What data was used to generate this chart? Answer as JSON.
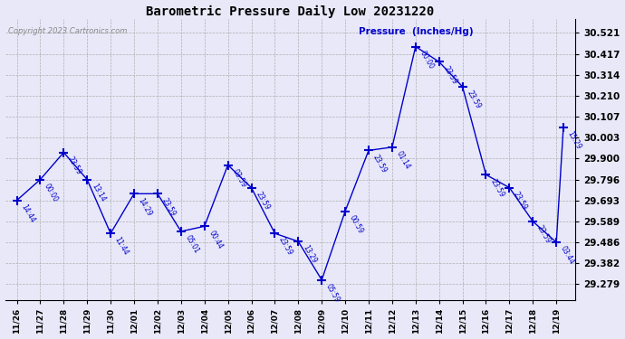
{
  "title": "Barometric Pressure Daily Low 20231220",
  "ylabel": "Pressure  (Inches/Hg)",
  "copyright": "Copyright 2023 Cartronics.com",
  "background_color": "#e8e8f8",
  "line_color": "#0000cc",
  "text_color": "#0000cc",
  "title_color": "#000000",
  "copyright_color": "#888888",
  "ytick_values": [
    29.279,
    29.382,
    29.486,
    29.589,
    29.693,
    29.796,
    29.9,
    30.003,
    30.107,
    30.21,
    30.314,
    30.417,
    30.521
  ],
  "ylim": [
    29.2,
    30.59
  ],
  "data_points": [
    {
      "x": 0,
      "value": 29.693,
      "label": "14:44"
    },
    {
      "x": 1,
      "value": 29.796,
      "label": "00:00"
    },
    {
      "x": 2,
      "value": 29.93,
      "label": "23:59"
    },
    {
      "x": 3,
      "value": 29.796,
      "label": "13:14"
    },
    {
      "x": 4,
      "value": 29.53,
      "label": "11:44"
    },
    {
      "x": 5,
      "value": 29.726,
      "label": "14:29"
    },
    {
      "x": 6,
      "value": 29.726,
      "label": "23:59"
    },
    {
      "x": 7,
      "value": 29.54,
      "label": "05:01"
    },
    {
      "x": 8,
      "value": 29.565,
      "label": "00:44"
    },
    {
      "x": 9,
      "value": 29.868,
      "label": "03:59"
    },
    {
      "x": 10,
      "value": 29.756,
      "label": "23:59"
    },
    {
      "x": 11,
      "value": 29.53,
      "label": "23:59"
    },
    {
      "x": 12,
      "value": 29.49,
      "label": "13:29"
    },
    {
      "x": 13,
      "value": 29.3,
      "label": "05:59"
    },
    {
      "x": 14,
      "value": 29.64,
      "label": "00:59"
    },
    {
      "x": 15,
      "value": 29.94,
      "label": "23:59"
    },
    {
      "x": 16,
      "value": 29.956,
      "label": "01:14"
    },
    {
      "x": 17,
      "value": 30.453,
      "label": "00:00"
    },
    {
      "x": 18,
      "value": 30.378,
      "label": "23:59"
    },
    {
      "x": 19,
      "value": 30.255,
      "label": "23:59"
    },
    {
      "x": 20,
      "value": 29.82,
      "label": "23:59"
    },
    {
      "x": 21,
      "value": 29.756,
      "label": "23:59"
    },
    {
      "x": 22,
      "value": 29.589,
      "label": "23:59"
    },
    {
      "x": 23,
      "value": 29.486,
      "label": "03:44"
    },
    {
      "x": 23,
      "value": 30.055,
      "label": "15:29"
    }
  ],
  "xtick_labels": [
    "11/26",
    "11/27",
    "11/28",
    "11/29",
    "11/30",
    "12/01",
    "12/02",
    "12/03",
    "12/04",
    "12/05",
    "12/06",
    "12/07",
    "12/08",
    "12/09",
    "12/10",
    "12/11",
    "12/12",
    "12/13",
    "12/14",
    "12/15",
    "12/16",
    "12/17",
    "12/18",
    "12/19"
  ],
  "num_main_points": 24,
  "figsize": [
    6.9,
    3.75
  ],
  "dpi": 100
}
